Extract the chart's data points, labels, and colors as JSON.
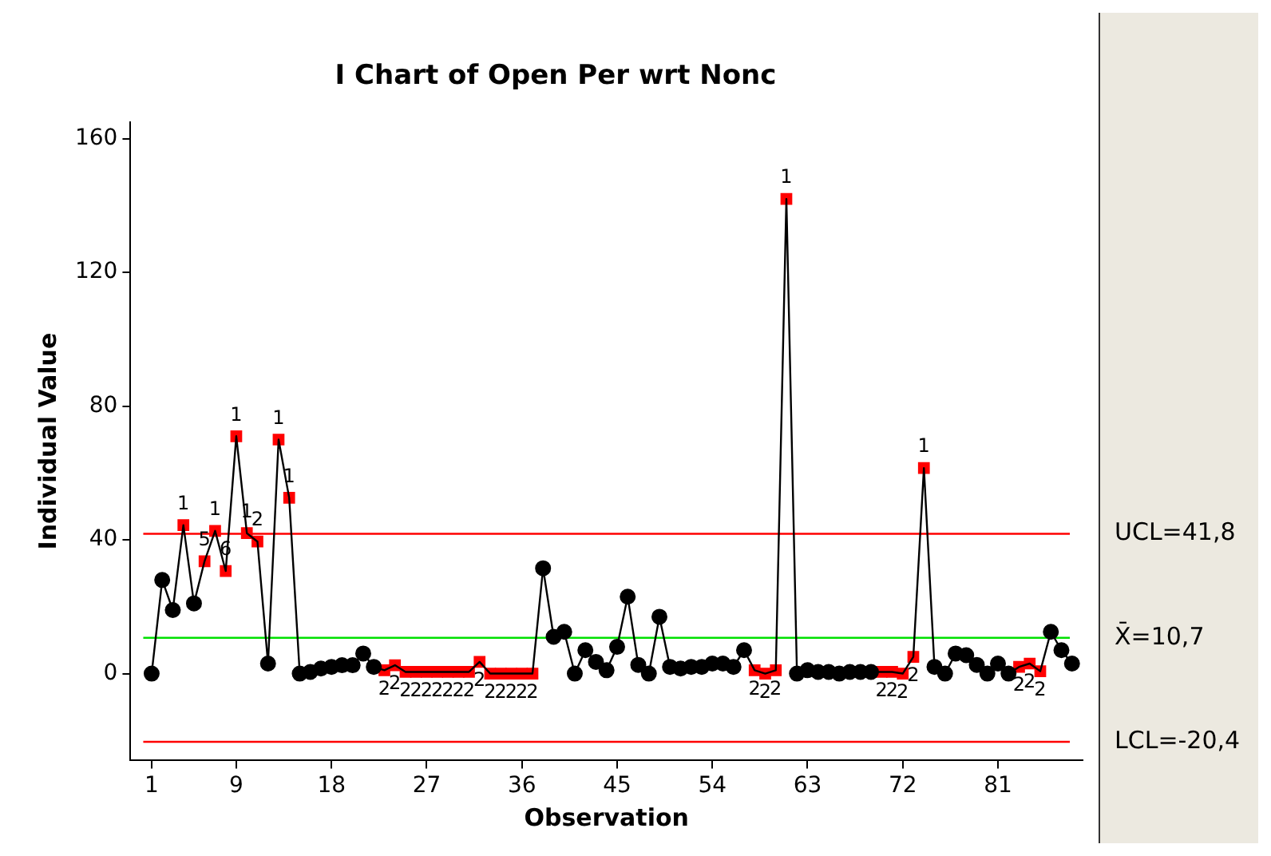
{
  "chart_data": {
    "type": "line",
    "title": "I Chart of Open Per wrt Nonc",
    "xlabel": "Observation",
    "ylabel": "Individual Value",
    "x": [
      1,
      2,
      3,
      4,
      5,
      6,
      7,
      8,
      9,
      10,
      11,
      12,
      13,
      14,
      15,
      16,
      17,
      18,
      19,
      20,
      21,
      22,
      23,
      24,
      25,
      26,
      27,
      28,
      29,
      30,
      31,
      32,
      33,
      34,
      35,
      36,
      37,
      38,
      39,
      40,
      41,
      42,
      43,
      44,
      45,
      46,
      47,
      48,
      49,
      50,
      51,
      52,
      53,
      54,
      55,
      56,
      57,
      58,
      59,
      60,
      61,
      62,
      63,
      64,
      65,
      66,
      67,
      68,
      69,
      70,
      71,
      72,
      73,
      74,
      75,
      76,
      77,
      78,
      79,
      80,
      81,
      82,
      83,
      84,
      85,
      86,
      87,
      88
    ],
    "xlim": [
      -1,
      89
    ],
    "xticks": [
      1,
      9,
      18,
      27,
      36,
      45,
      54,
      63,
      72,
      81
    ],
    "ylim": [
      -26,
      165
    ],
    "yticks": [
      0,
      40,
      80,
      120,
      160
    ],
    "grid": false,
    "legend": false,
    "series": [
      {
        "color": "#000000",
        "marker": "none",
        "values": [
          0,
          28,
          19,
          44.4,
          21,
          33.6,
          42.7,
          30.7,
          71,
          42,
          39.5,
          3,
          70,
          52.6,
          0,
          0.5,
          1.5,
          2,
          2.5,
          2.5,
          6,
          2,
          1,
          2.5,
          0.5,
          0.5,
          0.5,
          0.5,
          0.5,
          0.5,
          0.5,
          3.5,
          0,
          0,
          0,
          0,
          0,
          31.5,
          11,
          12.5,
          0,
          7,
          3.5,
          1,
          8,
          23,
          2.6,
          0,
          17,
          2,
          1.5,
          2,
          2,
          3,
          3,
          2,
          7,
          1,
          0,
          1,
          142,
          0,
          1,
          0.5,
          0.5,
          0,
          0.5,
          0.5,
          0.5,
          0.5,
          0.5,
          0,
          5,
          61.5,
          2,
          0,
          6,
          5.5,
          2.6,
          0,
          3,
          0,
          2,
          3,
          0.7,
          12.5,
          7,
          3
        ]
      },
      {
        "type": "scatter",
        "color": "#000000",
        "marker": "circle",
        "values": [
          0,
          28,
          19,
          null,
          21,
          null,
          null,
          null,
          null,
          null,
          null,
          3,
          null,
          null,
          0,
          0.5,
          1.5,
          2,
          2.5,
          2.5,
          6,
          2,
          null,
          null,
          null,
          null,
          null,
          null,
          null,
          null,
          null,
          null,
          null,
          null,
          null,
          null,
          null,
          31.5,
          11,
          12.5,
          0,
          7,
          3.5,
          1,
          8,
          23,
          2.6,
          0,
          17,
          2,
          1.5,
          2,
          2,
          3,
          3,
          2,
          7,
          null,
          null,
          null,
          null,
          0,
          1,
          0.5,
          0.5,
          0,
          0.5,
          0.5,
          0.5,
          null,
          null,
          null,
          null,
          null,
          2,
          0,
          6,
          5.5,
          2.6,
          0,
          3,
          0,
          null,
          null,
          null,
          12.5,
          7,
          3
        ]
      },
      {
        "type": "scatter",
        "color": "#ff0000",
        "marker": "square",
        "values": [
          null,
          null,
          null,
          44.4,
          null,
          33.6,
          42.7,
          30.7,
          71,
          42,
          39.5,
          null,
          70,
          52.6,
          null,
          null,
          null,
          null,
          null,
          null,
          null,
          null,
          1,
          2.5,
          0.5,
          0.5,
          0.5,
          0.5,
          0.5,
          0.5,
          0.5,
          3.5,
          0,
          0,
          0,
          0,
          0,
          null,
          null,
          null,
          null,
          null,
          null,
          null,
          null,
          null,
          null,
          null,
          null,
          null,
          null,
          null,
          null,
          null,
          null,
          null,
          null,
          1,
          0,
          1,
          142,
          null,
          null,
          null,
          null,
          null,
          null,
          null,
          null,
          0.5,
          0.5,
          0,
          5,
          61.5,
          null,
          null,
          null,
          null,
          null,
          null,
          null,
          null,
          2,
          3,
          0.7,
          null,
          null,
          null
        ]
      }
    ],
    "annotations": [
      {
        "text": "1",
        "x": 4,
        "y": 44.4
      },
      {
        "text": "5",
        "x": 6,
        "y": 33.6
      },
      {
        "text": "1",
        "x": 7,
        "y": 42.7
      },
      {
        "text": "6",
        "x": 8,
        "y": 30.7
      },
      {
        "text": "1",
        "x": 9,
        "y": 71
      },
      {
        "text": "1",
        "x": 10,
        "y": 42
      },
      {
        "text": "2",
        "x": 11,
        "y": 39.5
      },
      {
        "text": "1",
        "x": 13,
        "y": 70
      },
      {
        "text": "1",
        "x": 14,
        "y": 52.6
      },
      {
        "text": "2",
        "x": 23,
        "y": 1
      },
      {
        "text": "2",
        "x": 24,
        "y": 2.5
      },
      {
        "text": "2",
        "x": 25,
        "y": 0.5
      },
      {
        "text": "2",
        "x": 26,
        "y": 0.5
      },
      {
        "text": "2",
        "x": 27,
        "y": 0.5
      },
      {
        "text": "2",
        "x": 28,
        "y": 0.5
      },
      {
        "text": "2",
        "x": 29,
        "y": 0.5
      },
      {
        "text": "2",
        "x": 30,
        "y": 0.5
      },
      {
        "text": "2",
        "x": 31,
        "y": 0.5
      },
      {
        "text": "2",
        "x": 32,
        "y": 3.5
      },
      {
        "text": "2",
        "x": 33,
        "y": 0
      },
      {
        "text": "2",
        "x": 34,
        "y": 0
      },
      {
        "text": "2",
        "x": 35,
        "y": 0
      },
      {
        "text": "2",
        "x": 36,
        "y": 0
      },
      {
        "text": "2",
        "x": 37,
        "y": 0
      },
      {
        "text": "2",
        "x": 58,
        "y": 1
      },
      {
        "text": "2",
        "x": 59,
        "y": 0
      },
      {
        "text": "2",
        "x": 60,
        "y": 1
      },
      {
        "text": "1",
        "x": 61,
        "y": 142
      },
      {
        "text": "2",
        "x": 70,
        "y": 0.5
      },
      {
        "text": "2",
        "x": 71,
        "y": 0.5
      },
      {
        "text": "2",
        "x": 72,
        "y": 0
      },
      {
        "text": "2",
        "x": 73,
        "y": 5
      },
      {
        "text": "1",
        "x": 74,
        "y": 61.5
      },
      {
        "text": "2",
        "x": 83,
        "y": 2
      },
      {
        "text": "2",
        "x": 84,
        "y": 3
      },
      {
        "text": "2",
        "x": 85,
        "y": 0.7
      }
    ],
    "ref_lines": [
      {
        "axis": "y",
        "value": 41.8,
        "label": "UCL=41,8",
        "color": "#ff0000"
      },
      {
        "axis": "y",
        "value": 10.7,
        "label": "X̄=10,7",
        "color": "#00e000"
      },
      {
        "axis": "y",
        "value": -20.4,
        "label": "LCL=-20,4",
        "color": "#ff0000"
      }
    ]
  }
}
